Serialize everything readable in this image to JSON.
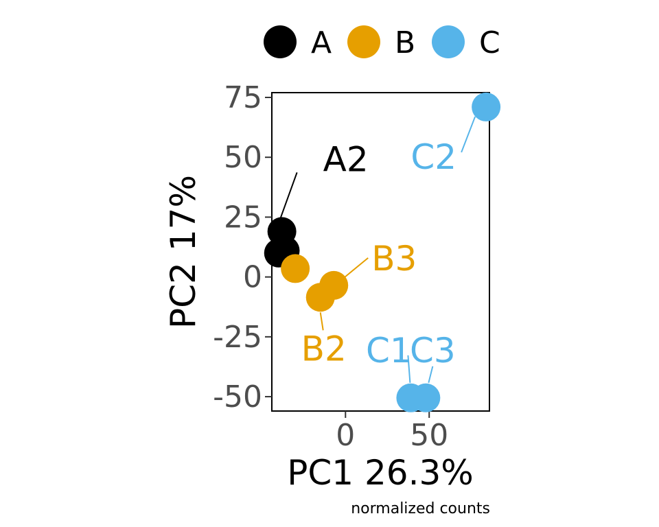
{
  "chart_data": {
    "type": "scatter",
    "xlabel": "PC1 26.3%",
    "ylabel": "PC2 17%",
    "caption": "normalized counts",
    "xlim": [
      -44,
      86
    ],
    "ylim": [
      -56,
      77
    ],
    "xticks": [
      0,
      50
    ],
    "yticks": [
      75,
      50,
      25,
      0,
      -25,
      -50
    ],
    "xtick_labels": [
      "0",
      "50"
    ],
    "ytick_labels": [
      "75",
      "50",
      "25",
      "0",
      "-25",
      "-50"
    ],
    "grid": false,
    "legend_position": "top",
    "groups": [
      {
        "name": "A",
        "color": "#000000"
      },
      {
        "name": "B",
        "color": "#E69F00"
      },
      {
        "name": "C",
        "color": "#56B4E9"
      }
    ],
    "points": [
      {
        "id": "A1",
        "group": "A",
        "x": -40,
        "y": 10,
        "label": ""
      },
      {
        "id": "A2",
        "group": "A",
        "x": -38,
        "y": 19,
        "label": "A2"
      },
      {
        "id": "A3",
        "group": "A",
        "x": -36,
        "y": 11,
        "label": ""
      },
      {
        "id": "B1",
        "group": "B",
        "x": -30,
        "y": 3.5,
        "label": ""
      },
      {
        "id": "B2",
        "group": "B",
        "x": -15,
        "y": -8.5,
        "label": "B2"
      },
      {
        "id": "B3",
        "group": "B",
        "x": -7,
        "y": -3.5,
        "label": "B3"
      },
      {
        "id": "C1",
        "group": "C",
        "x": 39,
        "y": -50.5,
        "label": "C1"
      },
      {
        "id": "C2",
        "group": "C",
        "x": 84,
        "y": 71,
        "label": "C2"
      },
      {
        "id": "C3",
        "group": "C",
        "x": 48,
        "y": -50.5,
        "label": "C3"
      }
    ]
  }
}
